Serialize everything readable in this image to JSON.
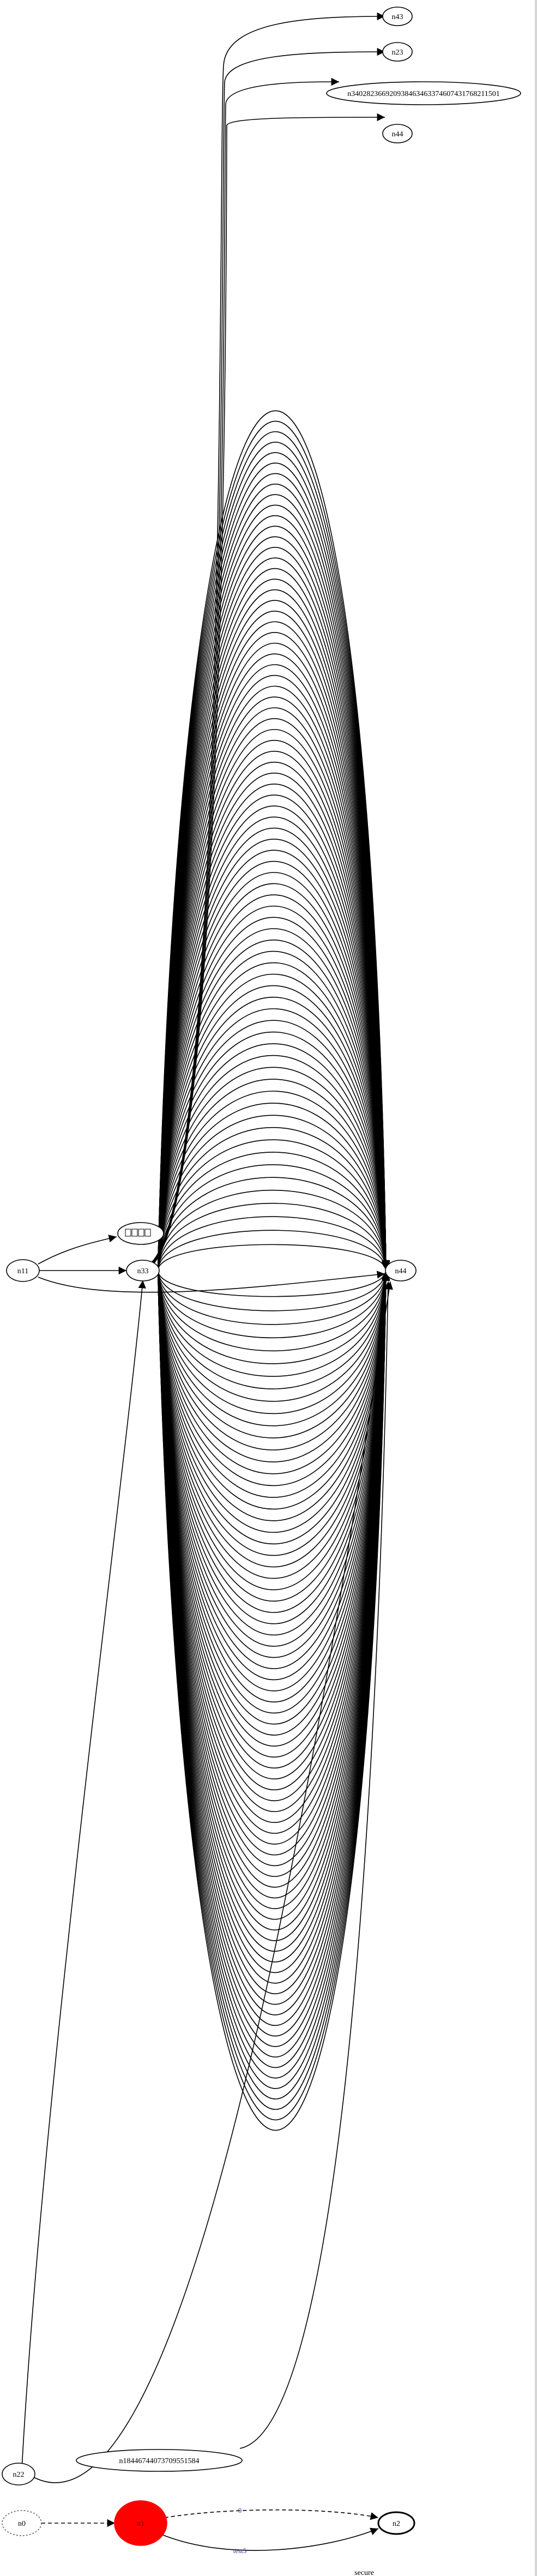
{
  "graph": {
    "nodes": {
      "n43": "n43",
      "n23": "n23",
      "n340": "n340282366920938463463374607431768211501",
      "n44_top": "n44",
      "n11": "n11",
      "n33": "n33",
      "n44": "n44",
      "n18": "n18446744073709551584",
      "n22": "n22",
      "n0": "n0",
      "n1": "n1",
      "n2": "n2"
    },
    "edge_labels": {
      "n1_n2_top": "0",
      "n1_n2_bottom": "test5"
    },
    "subgraph_label": "secure",
    "multi_edge_count_up": 75,
    "multi_edge_count_down": 75,
    "colors": {
      "stroke": "#000000",
      "n1_fill": "#ff0000",
      "edge_label": "#3a3a99",
      "n0_stroke": "#666666"
    }
  }
}
